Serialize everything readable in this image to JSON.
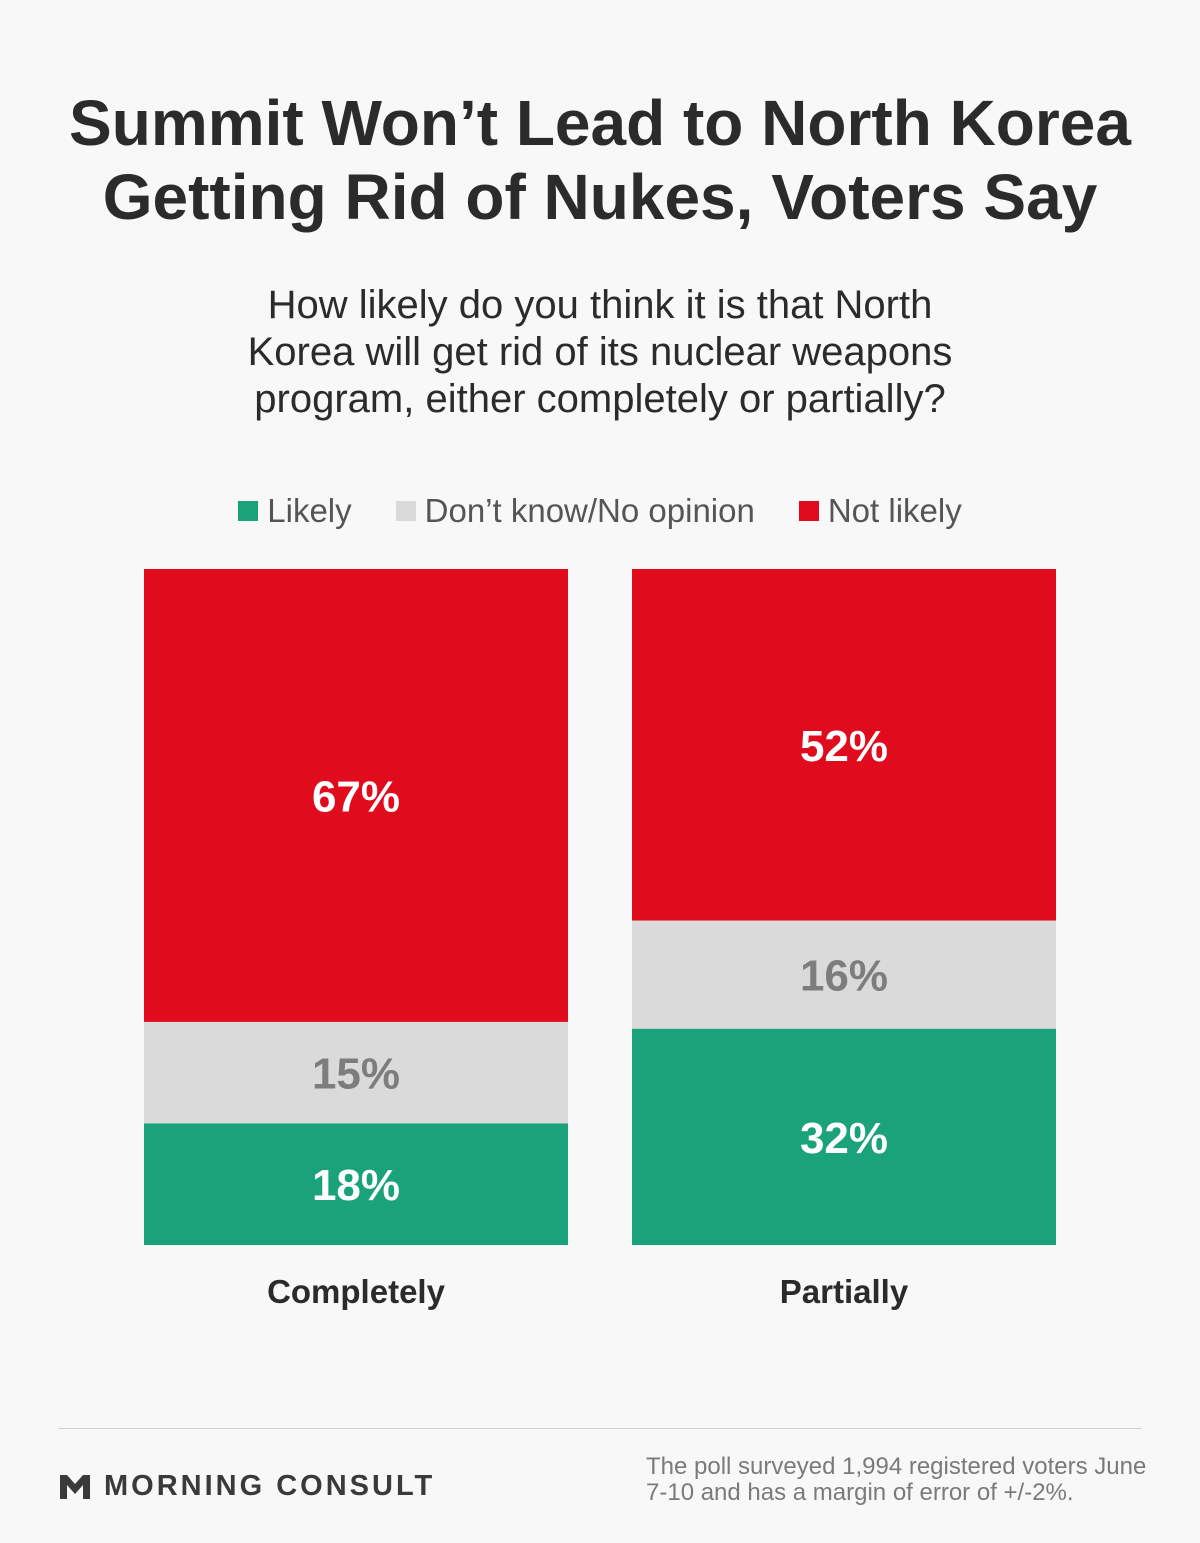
{
  "header": {
    "title_lines": [
      "Summit Won’t Lead to North Korea",
      "Getting Rid of Nukes, Voters Say"
    ],
    "subtitle_lines": [
      "How likely do you think it is that North",
      "Korea will get rid of its nuclear weapons",
      "program, either completely or partially?"
    ]
  },
  "legend": [
    {
      "label": "Likely",
      "color": "#1aa37a"
    },
    {
      "label": "Don’t know/No opinion",
      "color": "#dadada"
    },
    {
      "label": "Not likely",
      "color": "#e00b1c"
    }
  ],
  "chart_data": {
    "type": "bar",
    "stacked": true,
    "categories": [
      "Completely",
      "Partially"
    ],
    "series": [
      {
        "name": "Likely",
        "values": [
          18,
          32
        ],
        "color": "#1aa37a",
        "label_color": "#ffffff"
      },
      {
        "name": "Don’t know/No opinion",
        "values": [
          15,
          16
        ],
        "color": "#dadada",
        "label_color": "#7d7d7d"
      },
      {
        "name": "Not likely",
        "values": [
          67,
          52
        ],
        "color": "#e00b1c",
        "label_color": "#ffffff"
      }
    ],
    "value_suffix": "%",
    "ylim": [
      0,
      100
    ],
    "legend_position": "top-center",
    "grid": false
  },
  "footer": {
    "brand": "MORNING CONSULT",
    "note_lines": [
      "The poll surveyed 1,994 registered voters June",
      "7-10 and has a margin of error of +/-2%."
    ]
  }
}
